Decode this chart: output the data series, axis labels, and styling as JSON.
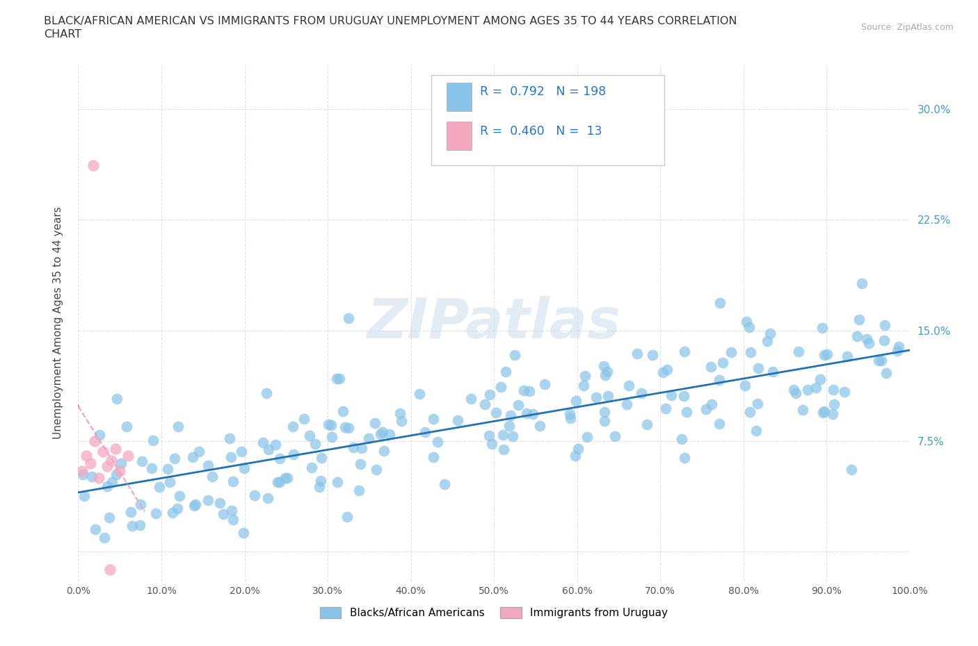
{
  "title_line1": "BLACK/AFRICAN AMERICAN VS IMMIGRANTS FROM URUGUAY UNEMPLOYMENT AMONG AGES 35 TO 44 YEARS CORRELATION",
  "title_line2": "CHART",
  "source_text": "Source: ZipAtlas.com",
  "ylabel": "Unemployment Among Ages 35 to 44 years",
  "xlim": [
    0.0,
    1.0
  ],
  "ylim": [
    -0.02,
    0.33
  ],
  "xticks": [
    0.0,
    0.1,
    0.2,
    0.3,
    0.4,
    0.5,
    0.6,
    0.7,
    0.8,
    0.9,
    1.0
  ],
  "xticklabels": [
    "0.0%",
    "10.0%",
    "20.0%",
    "30.0%",
    "40.0%",
    "50.0%",
    "60.0%",
    "70.0%",
    "80.0%",
    "90.0%",
    "100.0%"
  ],
  "yticks": [
    0.0,
    0.075,
    0.15,
    0.225,
    0.3
  ],
  "yticklabels": [
    "",
    "7.5%",
    "15.0%",
    "22.5%",
    "30.0%"
  ],
  "blue_color": "#88c4e8",
  "pink_color": "#f4a8be",
  "blue_line_color": "#2171b5",
  "pink_line_color": "#e05080",
  "pink_dash_color": "#f0a0c0",
  "R_blue": 0.792,
  "N_blue": 198,
  "R_pink": 0.46,
  "N_pink": 13,
  "legend_label_blue": "Blacks/African Americans",
  "legend_label_pink": "Immigrants from Uruguay",
  "background_color": "#ffffff",
  "grid_color": "#e0e0e0",
  "watermark_text": "ZIPatlas",
  "title_color": "#333333",
  "tick_color": "#4499dd",
  "seed": 42
}
